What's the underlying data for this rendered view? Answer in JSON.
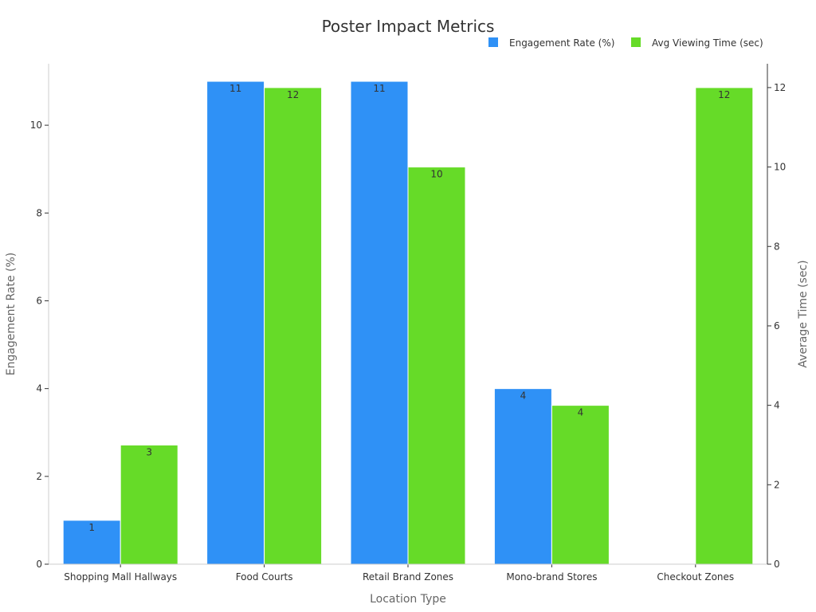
{
  "chart_data": {
    "type": "bar",
    "title": "Poster Impact Metrics",
    "xlabel": "Location Type",
    "ylabel_left": "Engagement Rate (%)",
    "ylabel_right": "Average Time (sec)",
    "categories": [
      "Shopping Mall Hallways",
      "Food Courts",
      "Retail Brand Zones",
      "Mono-brand Stores",
      "Checkout Zones"
    ],
    "series": [
      {
        "name": "Engagement Rate (%)",
        "axis": "left",
        "color": "#2f91f6",
        "values": [
          1,
          11,
          11,
          4,
          null
        ],
        "labels": [
          "1",
          "11",
          "11",
          "4",
          ""
        ]
      },
      {
        "name": "Avg Viewing Time (sec)",
        "axis": "right",
        "color": "#66db28",
        "values": [
          3,
          12,
          10,
          4,
          12
        ],
        "labels": [
          "3",
          "12",
          "10",
          "4",
          "12"
        ]
      }
    ],
    "ylim_left": [
      0,
      11.4
    ],
    "yticks_left": [
      0,
      2,
      4,
      6,
      8,
      10
    ],
    "ylim_right": [
      0,
      12.6
    ],
    "yticks_right": [
      0,
      2,
      4,
      6,
      8,
      10,
      12
    ],
    "grid": false,
    "legend_position": "top-right"
  }
}
